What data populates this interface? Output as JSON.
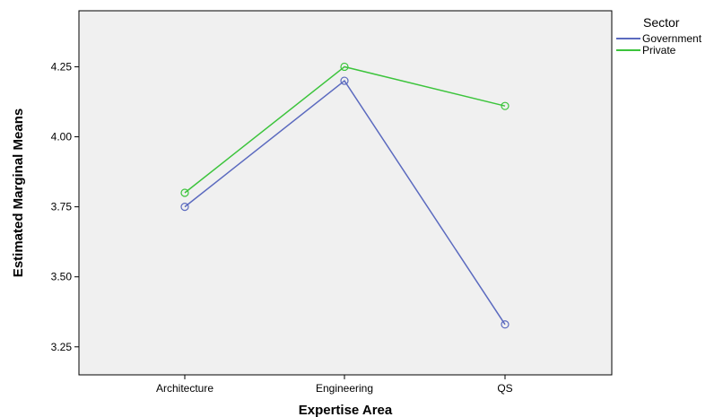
{
  "chart_data": {
    "type": "line",
    "title": "",
    "xlabel": "Expertise Area",
    "ylabel": "Estimated Marginal Means",
    "categories": [
      "Architecture",
      "Engineering",
      "QS"
    ],
    "ylim": [
      3.15,
      4.45
    ],
    "yticks": [
      3.25,
      3.5,
      3.75,
      4.0,
      4.25
    ],
    "ytick_labels": [
      "3.25",
      "3.50",
      "3.75",
      "4.00",
      "4.25"
    ],
    "grid": false,
    "legend": {
      "title": "Sector",
      "placement": "right"
    },
    "series": [
      {
        "name": "Government",
        "values": [
          3.75,
          4.2,
          3.33
        ],
        "color": "#5b6abf"
      },
      {
        "name": "Private",
        "values": [
          3.8,
          4.25,
          4.11
        ],
        "color": "#3cc43c"
      }
    ]
  },
  "colors": {
    "plot_background": "#f0f0f0",
    "axis": "#000000"
  }
}
